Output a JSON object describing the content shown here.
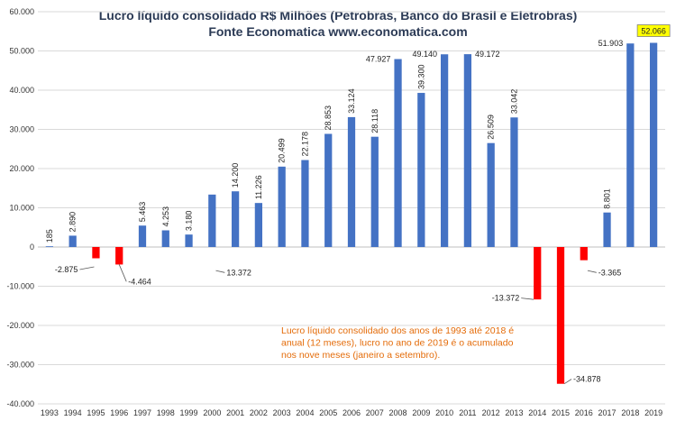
{
  "colors": {
    "positive": "#4472c4",
    "negative": "#ff0000",
    "grid": "#d9d9d9",
    "highlight": "#ffff00",
    "note": "#e46c0a",
    "title": "#2b3a55"
  },
  "chart_data": {
    "type": "bar",
    "title": "Lucro líquido consolidado R$ Milhões (Petrobras, Banco do Brasil e Eletrobras)",
    "subtitle": "Fonte Economatica www.economatica.com",
    "xlabel": "",
    "ylabel": "",
    "ylim": [
      -40000,
      60000
    ],
    "yticks": [
      60000,
      50000,
      40000,
      30000,
      20000,
      10000,
      0,
      -10000,
      -20000,
      -30000,
      -40000
    ],
    "ytick_labels": [
      "60.000",
      "50.000",
      "40.000",
      "30.000",
      "20.000",
      "10.000",
      "0",
      "-10.000",
      "-20.000",
      "-30.000",
      "-40.000"
    ],
    "grid": true,
    "categories": [
      "1993",
      "1994",
      "1995",
      "1996",
      "1997",
      "1998",
      "1999",
      "2000",
      "2001",
      "2002",
      "2003",
      "2004",
      "2005",
      "2006",
      "2007",
      "2008",
      "2009",
      "2010",
      "2011",
      "2012",
      "2013",
      "2014",
      "2015",
      "2016",
      "2017",
      "2018",
      "2019"
    ],
    "values": [
      185,
      2890,
      -2875,
      -4464,
      5463,
      4253,
      3180,
      13372,
      14200,
      11226,
      20499,
      22178,
      28853,
      33124,
      28118,
      47927,
      39300,
      49140,
      49172,
      26509,
      33042,
      -13372,
      -34878,
      -3365,
      8801,
      51903,
      52066
    ],
    "data_labels": [
      "185",
      "2.890",
      "-2.875",
      "-4.464",
      "5.463",
      "4.253",
      "3.180",
      "13.372",
      "14.200",
      "11.226",
      "20.499",
      "22.178",
      "28.853",
      "33.124",
      "28.118",
      "47.927",
      "39.300",
      "49.140",
      "49.172",
      "26.509",
      "33.042",
      "-13.372",
      "-34.878",
      "-3.365",
      "8.801",
      "51.903",
      "52.066"
    ],
    "highlighted_label": "52.066",
    "annotation": [
      "Lucro líquido consolidado dos anos de 1993 até 2018 é",
      "anual (12 meses), lucro no ano de 2019 é o acumulado",
      "nos nove meses (janeiro a setembro)."
    ]
  }
}
